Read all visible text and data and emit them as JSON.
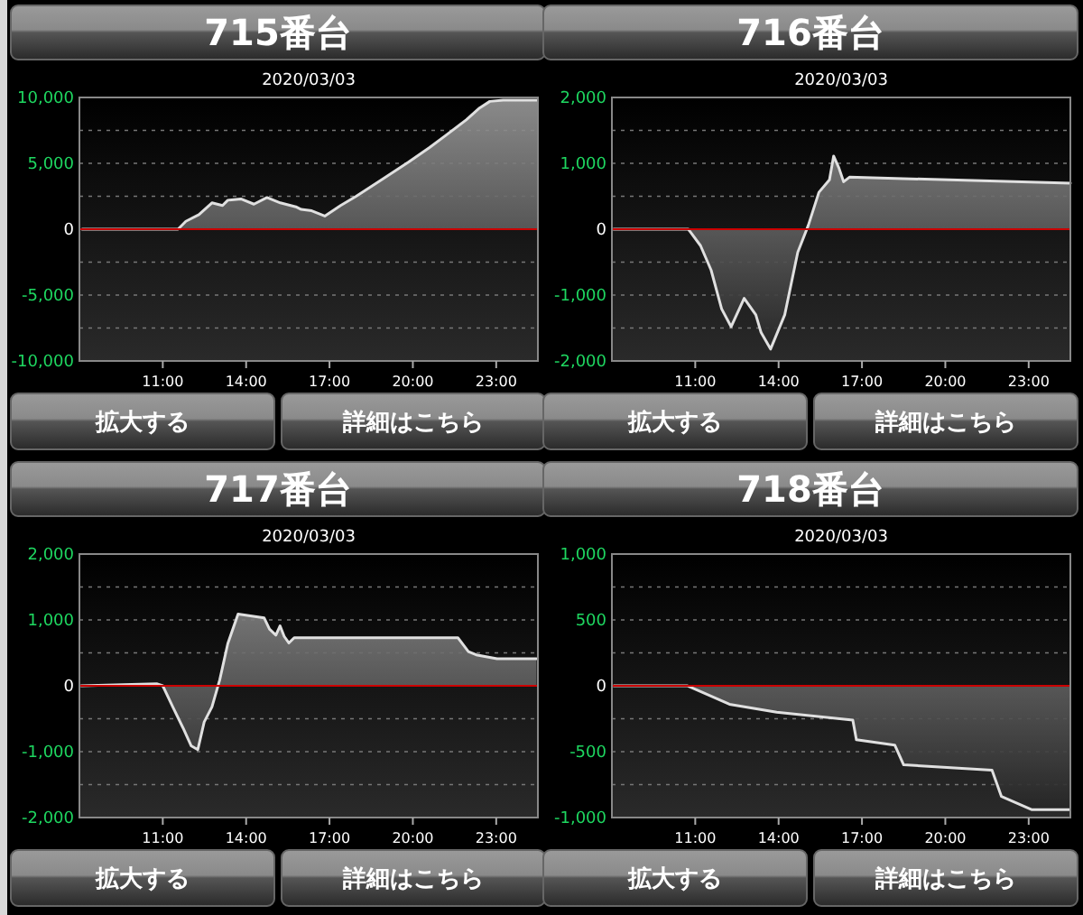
{
  "chart_data": [
    {
      "type": "area",
      "title": "715番台",
      "subtitle": "2020/03/03",
      "annotations": [
        "拡大する",
        "詳細はこちら"
      ],
      "xlim": [
        8,
        24.5
      ],
      "ylim": [
        -10000,
        10000
      ],
      "xticks": [
        {
          "value": 11,
          "label": "11:00"
        },
        {
          "value": 14,
          "label": "14:00"
        },
        {
          "value": 17,
          "label": "17:00"
        },
        {
          "value": 20,
          "label": "20:00"
        },
        {
          "value": 23,
          "label": "23:00"
        }
      ],
      "yticks": [
        {
          "value": -10000,
          "label": "-10,000"
        },
        {
          "value": -7500,
          "label": null
        },
        {
          "value": -5000,
          "label": "-5,000"
        },
        {
          "value": -2500,
          "label": null
        },
        {
          "value": 0,
          "label": "0"
        },
        {
          "value": 2500,
          "label": null
        },
        {
          "value": 5000,
          "label": "5,000"
        },
        {
          "value": 7500,
          "label": null
        },
        {
          "value": 10000,
          "label": "10,000"
        }
      ],
      "grid": "y",
      "ref_lines": [
        {
          "axis": "y",
          "value": 0,
          "color": "#cc0000"
        }
      ],
      "series": [
        {
          "color": "#e0e0e0",
          "x": [
            8.1,
            11.55,
            11.83,
            12.3,
            12.77,
            13.15,
            13.34,
            13.81,
            14.28,
            14.75,
            15.23,
            15.79,
            15.98,
            16.36,
            16.83,
            17.4,
            17.96,
            18.91,
            19.85,
            20.6,
            21.17,
            21.92,
            22.4,
            22.77,
            23.25,
            24.47
          ],
          "values": [
            0,
            0,
            600,
            1100,
            2000,
            1800,
            2200,
            2300,
            1900,
            2400,
            2000,
            1700,
            1500,
            1400,
            1000,
            1800,
            2500,
            3800,
            5100,
            6200,
            7100,
            8300,
            9200,
            9700,
            9800,
            9800
          ]
        }
      ]
    },
    {
      "type": "area",
      "title": "716番台",
      "subtitle": "2020/03/03",
      "annotations": [
        "拡大する",
        "詳細はこちら"
      ],
      "xlim": [
        8,
        24.5
      ],
      "ylim": [
        -2000,
        2000
      ],
      "xticks": [
        {
          "value": 11,
          "label": "11:00"
        },
        {
          "value": 14,
          "label": "14:00"
        },
        {
          "value": 17,
          "label": "17:00"
        },
        {
          "value": 20,
          "label": "20:00"
        },
        {
          "value": 23,
          "label": "23:00"
        }
      ],
      "yticks": [
        {
          "value": -2000,
          "label": "-2,000"
        },
        {
          "value": -1500,
          "label": null
        },
        {
          "value": -1000,
          "label": "-1,000"
        },
        {
          "value": -500,
          "label": null
        },
        {
          "value": 0,
          "label": "0"
        },
        {
          "value": 500,
          "label": null
        },
        {
          "value": 1000,
          "label": "1,000"
        },
        {
          "value": 1500,
          "label": null
        },
        {
          "value": 2000,
          "label": "2,000"
        }
      ],
      "grid": "y",
      "ref_lines": [
        {
          "axis": "y",
          "value": 0,
          "color": "#cc0000"
        }
      ],
      "series": [
        {
          "color": "#e0e0e0",
          "x": [
            8.06,
            10.75,
            11.19,
            11.57,
            11.95,
            12.29,
            12.76,
            13.18,
            13.37,
            13.71,
            14.22,
            14.69,
            15.07,
            15.45,
            15.83,
            15.98,
            16.17,
            16.34,
            16.55,
            24.5
          ],
          "values": [
            0,
            0,
            -250,
            -620,
            -1210,
            -1480,
            -1050,
            -1300,
            -1570,
            -1820,
            -1300,
            -350,
            60,
            560,
            750,
            1110,
            930,
            720,
            790,
            700
          ]
        }
      ]
    },
    {
      "type": "area",
      "title": "717番台",
      "subtitle": "2020/03/03",
      "annotations": [
        "拡大する",
        "詳細はこちら"
      ],
      "xlim": [
        8,
        24.5
      ],
      "ylim": [
        -2000,
        2000
      ],
      "xticks": [
        {
          "value": 11,
          "label": "11:00"
        },
        {
          "value": 14,
          "label": "14:00"
        },
        {
          "value": 17,
          "label": "17:00"
        },
        {
          "value": 20,
          "label": "20:00"
        },
        {
          "value": 23,
          "label": "23:00"
        }
      ],
      "yticks": [
        {
          "value": -2000,
          "label": "-2,000"
        },
        {
          "value": -1500,
          "label": null
        },
        {
          "value": -1000,
          "label": "-1,000"
        },
        {
          "value": -500,
          "label": null
        },
        {
          "value": 0,
          "label": "0"
        },
        {
          "value": 500,
          "label": null
        },
        {
          "value": 1000,
          "label": "1,000"
        },
        {
          "value": 1500,
          "label": null
        },
        {
          "value": 2000,
          "label": "2,000"
        }
      ],
      "grid": "y",
      "ref_lines": [
        {
          "axis": "y",
          "value": 0,
          "color": "#cc0000"
        }
      ],
      "series": [
        {
          "color": "#e0e0e0",
          "x": [
            8.06,
            10.8,
            11,
            11.36,
            11.73,
            12.02,
            12.26,
            12.49,
            12.77,
            13.05,
            13.34,
            13.71,
            14.65,
            14.84,
            15.07,
            15.22,
            15.37,
            15.54,
            15.73,
            21.62,
            22,
            22.28,
            23.03,
            24.45
          ],
          "values": [
            0,
            30,
            0,
            -320,
            -640,
            -910,
            -970,
            -550,
            -320,
            90,
            640,
            1090,
            1030,
            860,
            770,
            910,
            750,
            650,
            730,
            730,
            520,
            470,
            410,
            410
          ]
        }
      ]
    },
    {
      "type": "area",
      "title": "718番台",
      "subtitle": "2020/03/03",
      "annotations": [
        "拡大する",
        "詳細はこちら"
      ],
      "xlim": [
        8,
        24.5
      ],
      "ylim": [
        -1000,
        1000
      ],
      "xticks": [
        {
          "value": 11,
          "label": "11:00"
        },
        {
          "value": 14,
          "label": "14:00"
        },
        {
          "value": 17,
          "label": "17:00"
        },
        {
          "value": 20,
          "label": "20:00"
        },
        {
          "value": 23,
          "label": "23:00"
        }
      ],
      "yticks": [
        {
          "value": -1000,
          "label": "-1,000"
        },
        {
          "value": -750,
          "label": null
        },
        {
          "value": -500,
          "label": "-500"
        },
        {
          "value": -250,
          "label": null
        },
        {
          "value": 0,
          "label": "0"
        },
        {
          "value": 250,
          "label": null
        },
        {
          "value": 500,
          "label": "500"
        },
        {
          "value": 750,
          "label": null
        },
        {
          "value": 1000,
          "label": "1,000"
        }
      ],
      "grid": "y",
      "ref_lines": [
        {
          "axis": "y",
          "value": 0,
          "color": "#cc0000"
        }
      ],
      "series": [
        {
          "color": "#e0e0e0",
          "x": [
            8.07,
            10.72,
            12.23,
            13.93,
            16.67,
            16.8,
            18.18,
            18.5,
            21.68,
            22.02,
            23.1,
            24.47
          ],
          "values": [
            0,
            0,
            -140,
            -200,
            -260,
            -410,
            -450,
            -600,
            -640,
            -840,
            -940,
            -940
          ]
        }
      ]
    }
  ]
}
